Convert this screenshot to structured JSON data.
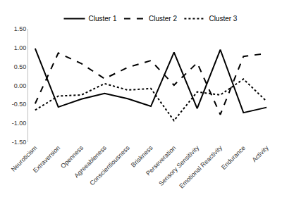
{
  "chart_data": {
    "type": "line",
    "categories": [
      "Neuroticism",
      "Extraversion",
      "Openness",
      "Agreeableness",
      "Conscientiousness",
      "Briskness",
      "Perseveration",
      "Sensory Sensitivity",
      "Emotional Reactivity",
      "Endurance",
      "Activity"
    ],
    "series": [
      {
        "name": "Cluster 1",
        "color": "#000000",
        "line_style": "solid",
        "values": [
          0.98,
          -0.57,
          -0.36,
          -0.21,
          -0.35,
          -0.55,
          0.88,
          -0.61,
          0.95,
          -0.72,
          -0.58
        ]
      },
      {
        "name": "Cluster 2",
        "color": "#000000",
        "line_style": "dash",
        "values": [
          -0.48,
          0.86,
          0.58,
          0.18,
          0.48,
          0.66,
          0.01,
          0.6,
          -0.77,
          0.77,
          0.85
        ]
      },
      {
        "name": "Cluster 3",
        "color": "#000000",
        "line_style": "dot",
        "values": [
          -0.65,
          -0.28,
          -0.25,
          0.05,
          -0.12,
          -0.08,
          -0.93,
          -0.17,
          -0.25,
          0.17,
          -0.42
        ]
      }
    ],
    "ylim": [
      -1.5,
      1.5
    ],
    "yticks": [
      {
        "value": -1.5,
        "label": "-1.50"
      },
      {
        "value": -1.0,
        "label": "-1.00"
      },
      {
        "value": -0.5,
        "label": "-0.50"
      },
      {
        "value": 0,
        "label": "0.00"
      },
      {
        "value": 0.5,
        "label": "0.50"
      },
      {
        "value": 1.0,
        "label": "1.00"
      },
      {
        "value": 1.5,
        "label": "1.50"
      }
    ],
    "grid": false,
    "legend": "top"
  }
}
